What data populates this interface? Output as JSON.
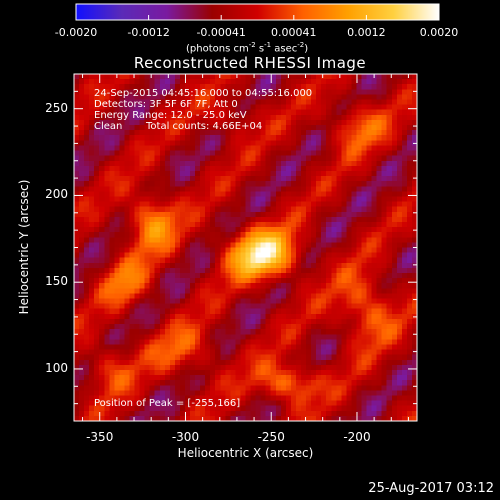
{
  "colorbar": {
    "ticks": [
      "-0.0020",
      "-0.0012",
      "-0.00041",
      "0.00041",
      "0.0012",
      "0.0020"
    ],
    "units_prefix": "(photons cm",
    "units_mid": " s",
    "units_mid2": " asec",
    "units_suffix": ")",
    "sup1": "-2",
    "sup2": "-1",
    "sup3": "-2",
    "colors": [
      "#1010ff",
      "#5a2ab8",
      "#7a1aa0",
      "#9a0000",
      "#d00000",
      "#ff6000",
      "#ffa000",
      "#ffd040",
      "#ffffff"
    ]
  },
  "chart_data": {
    "type": "heatmap",
    "title": "Reconstructed RHESSI Image",
    "xlabel": "Heliocentric X (arcsec)",
    "ylabel": "Heliocentric Y (arcsec)",
    "xlim": [
      -365,
      -165
    ],
    "ylim": [
      70,
      270
    ],
    "xticks": [
      -350,
      -300,
      -250,
      -200
    ],
    "yticks": [
      100,
      150,
      200,
      250
    ],
    "colorbar_range": [
      -0.002,
      0.002
    ],
    "annotations": {
      "line1": "24-Sep-2015 04:45:16.000 to 04:55:16.000",
      "line2": "Detectors: 3F 5F 6F 7F, Att 0",
      "line3": "Energy Range: 12.0 - 25.0 keV",
      "line4_a": "Clean",
      "line4_b": "Total counts: 4.66E+04",
      "peak": "Position of Peak = [-255,166]"
    },
    "peak": [
      -255,
      166
    ],
    "sources": [
      {
        "x": -255,
        "y": 166,
        "value": 0.002,
        "sx": 14,
        "sy": 10
      },
      {
        "x": -320,
        "y": 185,
        "value": 0.0012,
        "sx": 10,
        "sy": 12
      },
      {
        "x": -335,
        "y": 150,
        "value": 0.0008,
        "sx": 10,
        "sy": 10
      },
      {
        "x": -240,
        "y": 92,
        "value": 0.0012,
        "sx": 12,
        "sy": 8
      },
      {
        "x": -195,
        "y": 135,
        "value": 0.001,
        "sx": 12,
        "sy": 14
      },
      {
        "x": -200,
        "y": 240,
        "value": 0.0008,
        "sx": 12,
        "sy": 10
      },
      {
        "x": -300,
        "y": 110,
        "value": 0.0007,
        "sx": 14,
        "sy": 10
      },
      {
        "x": -345,
        "y": 100,
        "value": 0.0007,
        "sx": 10,
        "sy": 10
      },
      {
        "x": -275,
        "y": 245,
        "value": 0.0005,
        "sx": 12,
        "sy": 8
      }
    ]
  },
  "footer": {
    "date": "25-Aug-2017 03:12"
  }
}
